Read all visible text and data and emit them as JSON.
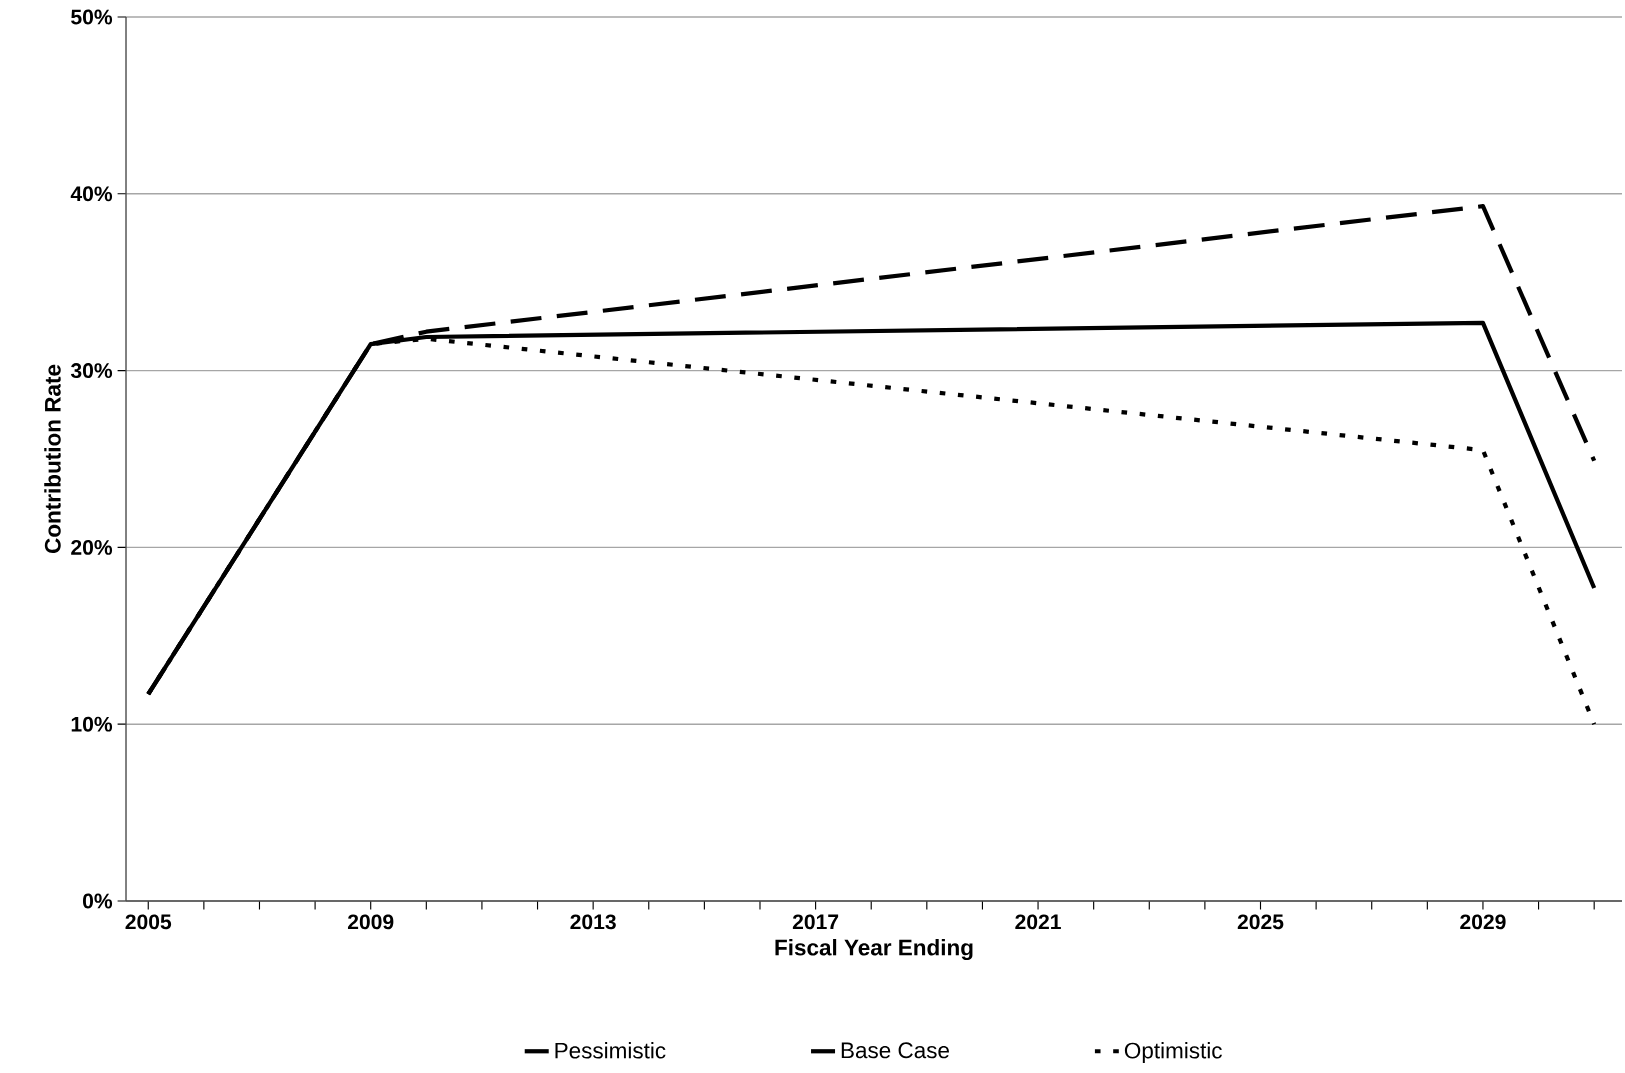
{
  "chart_data": {
    "type": "line",
    "xlabel": "Fiscal Year Ending",
    "ylabel": "Contribution Rate",
    "xlim": [
      2004.6,
      2031.5
    ],
    "xticks": [
      {
        "value": 2005,
        "label": "2005"
      },
      {
        "value": 2006,
        "label": null
      },
      {
        "value": 2007,
        "label": null
      },
      {
        "value": 2008,
        "label": null
      },
      {
        "value": 2009,
        "label": "2009"
      },
      {
        "value": 2010,
        "label": null
      },
      {
        "value": 2011,
        "label": null
      },
      {
        "value": 2012,
        "label": null
      },
      {
        "value": 2013,
        "label": "2013"
      },
      {
        "value": 2014,
        "label": null
      },
      {
        "value": 2015,
        "label": null
      },
      {
        "value": 2016,
        "label": null
      },
      {
        "value": 2017,
        "label": "2017"
      },
      {
        "value": 2018,
        "label": null
      },
      {
        "value": 2019,
        "label": null
      },
      {
        "value": 2020,
        "label": null
      },
      {
        "value": 2021,
        "label": "2021"
      },
      {
        "value": 2022,
        "label": null
      },
      {
        "value": 2023,
        "label": null
      },
      {
        "value": 2024,
        "label": null
      },
      {
        "value": 2025,
        "label": "2025"
      },
      {
        "value": 2026,
        "label": null
      },
      {
        "value": 2027,
        "label": null
      },
      {
        "value": 2028,
        "label": null
      },
      {
        "value": 2029,
        "label": "2029"
      },
      {
        "value": 2030,
        "label": null
      },
      {
        "value": 2031,
        "label": null
      }
    ],
    "ylim": [
      0,
      50
    ],
    "yticks": [
      {
        "value": 0,
        "label": "0%"
      },
      {
        "value": 10,
        "label": "10%"
      },
      {
        "value": 20,
        "label": "20%"
      },
      {
        "value": 30,
        "label": "30%"
      },
      {
        "value": 40,
        "label": "40%"
      },
      {
        "value": 50,
        "label": "50%"
      }
    ],
    "grid": "y",
    "legend": "bottom",
    "x": [
      2005,
      2009,
      2010,
      2029,
      2031
    ],
    "series": [
      {
        "name": "Pessimistic",
        "color": "#000000",
        "line_style": "dashed",
        "values": [
          11.7,
          31.5,
          32.2,
          39.3,
          24.9
        ]
      },
      {
        "name": "Base Case",
        "color": "#000000",
        "line_style": "solid",
        "values": [
          11.7,
          31.5,
          31.9,
          32.7,
          17.7
        ]
      },
      {
        "name": "Optimistic",
        "color": "#000000",
        "line_style": "dotted",
        "values": [
          11.7,
          31.5,
          31.8,
          25.5,
          10.0
        ]
      }
    ]
  }
}
